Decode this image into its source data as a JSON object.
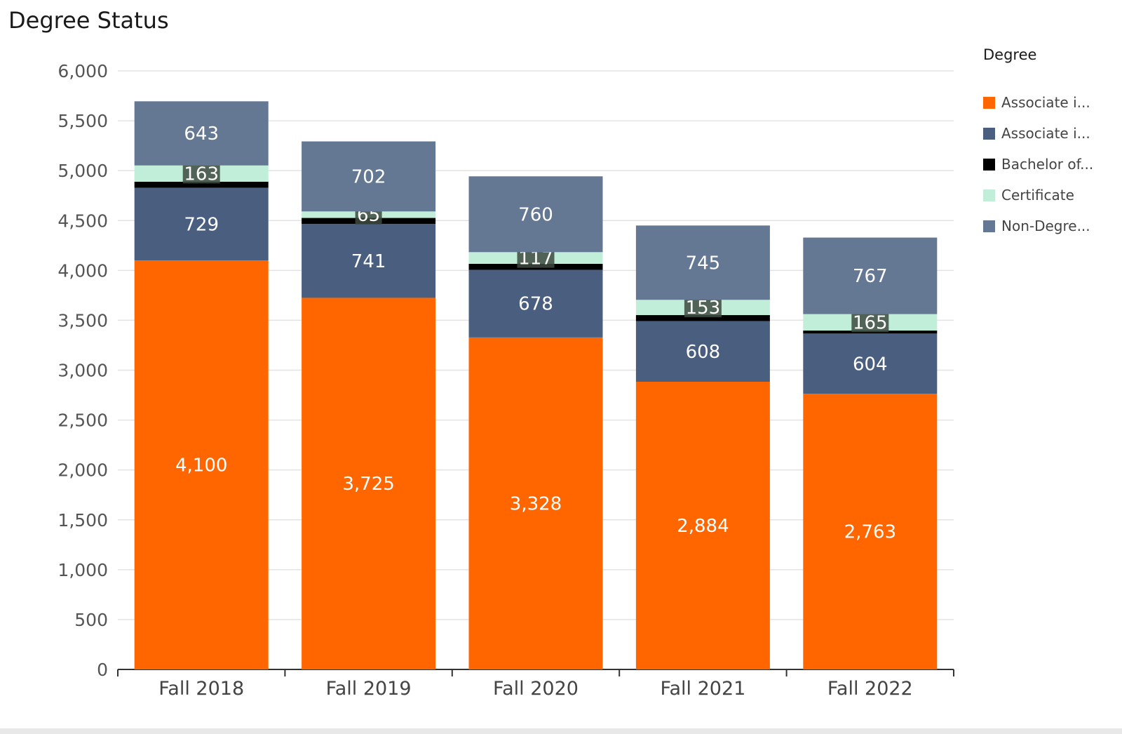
{
  "chart_data": {
    "type": "bar",
    "stacked": true,
    "title": "Degree Status",
    "categories": [
      "Fall 2018",
      "Fall 2019",
      "Fall 2020",
      "Fall 2021",
      "Fall 2022"
    ],
    "ylim": [
      0,
      6000
    ],
    "yticks": [
      0,
      500,
      1000,
      1500,
      2000,
      2500,
      3000,
      3500,
      4000,
      4500,
      5000,
      5500,
      6000
    ],
    "ytick_labels": [
      "0",
      "500",
      "1,000",
      "1,500",
      "2,000",
      "2,500",
      "3,000",
      "3,500",
      "4,000",
      "4,500",
      "5,000",
      "5,500",
      "6,000"
    ],
    "grid": true,
    "legend_title": "Degree",
    "legend_position": "right",
    "series": [
      {
        "name": "Associate i...",
        "color": "#ff6600",
        "values": [
          4100,
          3725,
          3328,
          2884,
          2763
        ],
        "labels": [
          "4,100",
          "3,725",
          "3,328",
          "2,884",
          "2,763"
        ]
      },
      {
        "name": "Associate i...",
        "color": "#4a5f80",
        "values": [
          729,
          741,
          678,
          608,
          604
        ],
        "labels": [
          "729",
          "741",
          "678",
          "608",
          "604"
        ]
      },
      {
        "name": "Bachelor of...",
        "color": "#000000",
        "values": [
          60,
          60,
          60,
          60,
          30
        ],
        "labels": [
          "",
          "",
          "",
          "",
          ""
        ]
      },
      {
        "name": "Certificate",
        "color": "#c1eed8",
        "values": [
          163,
          65,
          117,
          153,
          165
        ],
        "labels": [
          "163",
          "65",
          "117",
          "153",
          "165"
        ]
      },
      {
        "name": "Non-Degre...",
        "color": "#647894",
        "values": [
          643,
          702,
          760,
          745,
          767
        ],
        "labels": [
          "643",
          "702",
          "760",
          "745",
          "767"
        ]
      }
    ]
  }
}
